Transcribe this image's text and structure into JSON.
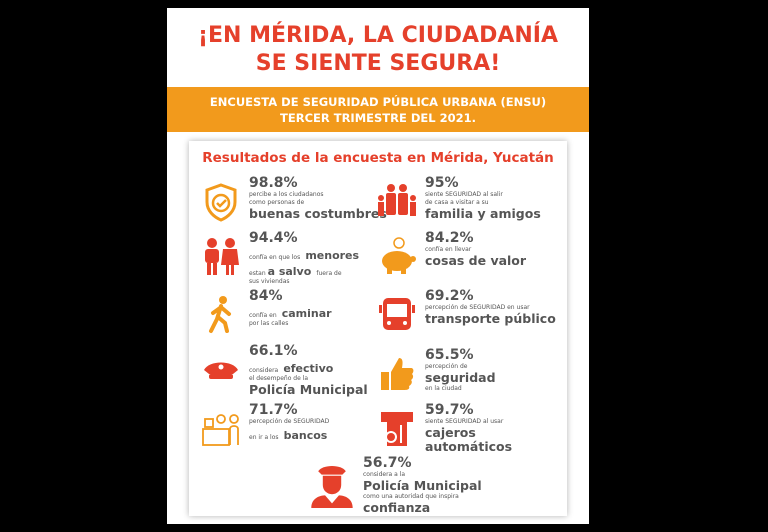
{
  "title": {
    "line1": "¡EN MÉRIDA, LA CIUDADANÍA",
    "line2": "SE SIENTE SEGURA!"
  },
  "band": {
    "line1": "ENCUESTA DE SEGURIDAD PÚBLICA URBANA (ENSU)",
    "line2": "TERCER TRIMESTRE DEL 2021."
  },
  "card": {
    "heading": "Resultados de la encuesta en Mérida, Yucatán"
  },
  "colors": {
    "red": "#e5402b",
    "orange": "#f29a1c",
    "text": "#555555"
  },
  "items": [
    {
      "pct": "98.8%",
      "a": "percibe a los ciudadanos",
      "b": "como personas de",
      "c": "buenas costumbres",
      "icon": "shield-check-icon"
    },
    {
      "pct": "95%",
      "a": "siente SEGURIDAD al salir",
      "b": "de casa a visitar a su",
      "c": "familia y amigos",
      "icon": "family-icon"
    },
    {
      "pct": "94.4%",
      "a": "confía en que los",
      "hl": "menores",
      "b": "a salvo",
      "b2": "fuera de",
      "c": "sus viviendas",
      "icon": "children-icon"
    },
    {
      "pct": "84.2%",
      "a": "confía en llevar",
      "c": "cosas de valor",
      "icon": "piggy-bank-icon"
    },
    {
      "pct": "84%",
      "a": "confía en",
      "hl": "caminar",
      "b": "por las calles",
      "icon": "walking-icon"
    },
    {
      "pct": "69.2%",
      "a": "percepción de SEGURIDAD en usar",
      "c": "transporte público",
      "icon": "bus-icon"
    },
    {
      "pct": "66.1%",
      "a": "considera",
      "hl": "efectivo",
      "b": "el desempeño de la",
      "c": "Policía Municipal",
      "icon": "police-cap-icon"
    },
    {
      "pct": "65.5%",
      "a": "percepción de",
      "c": "seguridad",
      "b": "en la ciudad",
      "icon": "thumbs-up-icon"
    },
    {
      "pct": "71.7%",
      "a": "percepción de SEGURIDAD",
      "b": "en ir a los",
      "hl": "bancos",
      "icon": "bank-counter-icon"
    },
    {
      "pct": "59.7%",
      "a": "siente SEGURIDAD al usar",
      "c": "cajeros automáticos",
      "icon": "atm-icon"
    },
    {
      "pct": "56.7%",
      "a": "considera a la",
      "c": "Policía Municipal",
      "b": "como una autoridad que inspira",
      "d": "confianza",
      "icon": "police-officer-icon"
    }
  ]
}
